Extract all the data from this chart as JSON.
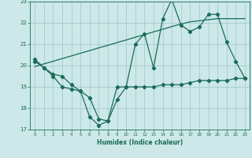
{
  "xlabel": "Humidex (Indice chaleur)",
  "x": [
    0,
    1,
    2,
    3,
    4,
    5,
    6,
    7,
    8,
    9,
    10,
    11,
    12,
    13,
    14,
    15,
    16,
    17,
    18,
    19,
    20,
    21,
    22,
    23
  ],
  "line1_y": [
    20.3,
    19.9,
    19.6,
    19.5,
    19.1,
    18.8,
    17.6,
    17.2,
    17.4,
    18.4,
    19.0,
    21.0,
    21.5,
    19.9,
    22.2,
    23.1,
    21.9,
    21.6,
    21.8,
    22.4,
    22.4,
    21.1,
    20.2,
    19.4
  ],
  "line2_y": [
    20.2,
    19.9,
    19.5,
    19.0,
    18.9,
    18.8,
    18.5,
    17.5,
    17.4,
    19.0,
    19.0,
    19.0,
    19.0,
    19.0,
    19.1,
    19.1,
    19.1,
    19.2,
    19.3,
    19.3,
    19.3,
    19.3,
    19.4,
    19.4
  ],
  "line3_y": [
    19.95,
    20.08,
    20.2,
    20.33,
    20.45,
    20.58,
    20.7,
    20.83,
    20.95,
    21.08,
    21.2,
    21.33,
    21.45,
    21.58,
    21.7,
    21.83,
    21.95,
    22.05,
    22.1,
    22.15,
    22.2,
    22.2,
    22.2,
    22.2
  ],
  "ylim": [
    17,
    23
  ],
  "xlim": [
    -0.5,
    23.5
  ],
  "yticks": [
    17,
    18,
    19,
    20,
    21,
    22,
    23
  ],
  "xticks": [
    0,
    1,
    2,
    3,
    4,
    5,
    6,
    7,
    8,
    9,
    10,
    11,
    12,
    13,
    14,
    15,
    16,
    17,
    18,
    19,
    20,
    21,
    22,
    23
  ],
  "line_color": "#1a6b5a",
  "bg_color": "#cce8e8",
  "grid_color": "#a8cccc"
}
